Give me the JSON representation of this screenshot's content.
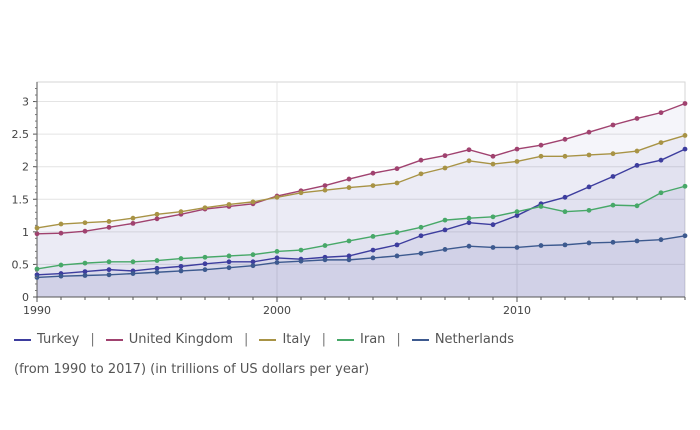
{
  "chart_data": {
    "type": "line",
    "title": "",
    "xlabel": "",
    "ylabel": "",
    "xlim": [
      1990,
      2017
    ],
    "ylim": [
      0,
      3.3
    ],
    "x_ticks": [
      "1990",
      "2000",
      "2010"
    ],
    "y_ticks": [
      "0",
      "0.5",
      "1",
      "1.5",
      "2",
      "2.5",
      "3"
    ],
    "x": [
      1990,
      1991,
      1992,
      1993,
      1994,
      1995,
      1996,
      1997,
      1998,
      1999,
      2000,
      2001,
      2002,
      2003,
      2004,
      2005,
      2006,
      2007,
      2008,
      2009,
      2010,
      2011,
      2012,
      2013,
      2014,
      2015,
      2016,
      2017
    ],
    "series": [
      {
        "name": "Turkey",
        "color": "#3d3d9e",
        "values": [
          0.34,
          0.36,
          0.39,
          0.42,
          0.4,
          0.44,
          0.47,
          0.51,
          0.54,
          0.54,
          0.6,
          0.58,
          0.61,
          0.63,
          0.72,
          0.8,
          0.94,
          1.03,
          1.14,
          1.11,
          1.25,
          1.43,
          1.53,
          1.69,
          1.85,
          2.02,
          2.1,
          2.27
        ]
      },
      {
        "name": "United Kingdom",
        "color": "#a0426f",
        "values": [
          0.97,
          0.98,
          1.01,
          1.07,
          1.13,
          1.2,
          1.27,
          1.35,
          1.39,
          1.43,
          1.55,
          1.63,
          1.71,
          1.81,
          1.9,
          1.97,
          2.1,
          2.17,
          2.26,
          2.16,
          2.27,
          2.33,
          2.42,
          2.53,
          2.64,
          2.74,
          2.83,
          2.97
        ]
      },
      {
        "name": "Italy",
        "color": "#a89345",
        "values": [
          1.06,
          1.12,
          1.14,
          1.16,
          1.21,
          1.27,
          1.31,
          1.37,
          1.42,
          1.46,
          1.53,
          1.6,
          1.64,
          1.68,
          1.71,
          1.75,
          1.89,
          1.98,
          2.09,
          2.04,
          2.08,
          2.16,
          2.16,
          2.18,
          2.2,
          2.24,
          2.37,
          2.48
        ]
      },
      {
        "name": "Iran",
        "color": "#47a868",
        "values": [
          0.43,
          0.49,
          0.52,
          0.54,
          0.54,
          0.56,
          0.59,
          0.61,
          0.63,
          0.65,
          0.7,
          0.72,
          0.79,
          0.86,
          0.93,
          0.99,
          1.07,
          1.18,
          1.21,
          1.23,
          1.31,
          1.39,
          1.31,
          1.33,
          1.41,
          1.4,
          1.6,
          1.7
        ]
      },
      {
        "name": "Netherlands",
        "color": "#3d5a8f",
        "values": [
          0.3,
          0.32,
          0.33,
          0.34,
          0.36,
          0.38,
          0.4,
          0.42,
          0.45,
          0.48,
          0.53,
          0.55,
          0.57,
          0.57,
          0.6,
          0.63,
          0.67,
          0.73,
          0.78,
          0.76,
          0.76,
          0.79,
          0.8,
          0.83,
          0.84,
          0.86,
          0.88,
          0.94
        ]
      }
    ]
  },
  "legend": {
    "separator": "|"
  },
  "note": "(from 1990 to 2017)  (in trillions of US dollars per year)"
}
